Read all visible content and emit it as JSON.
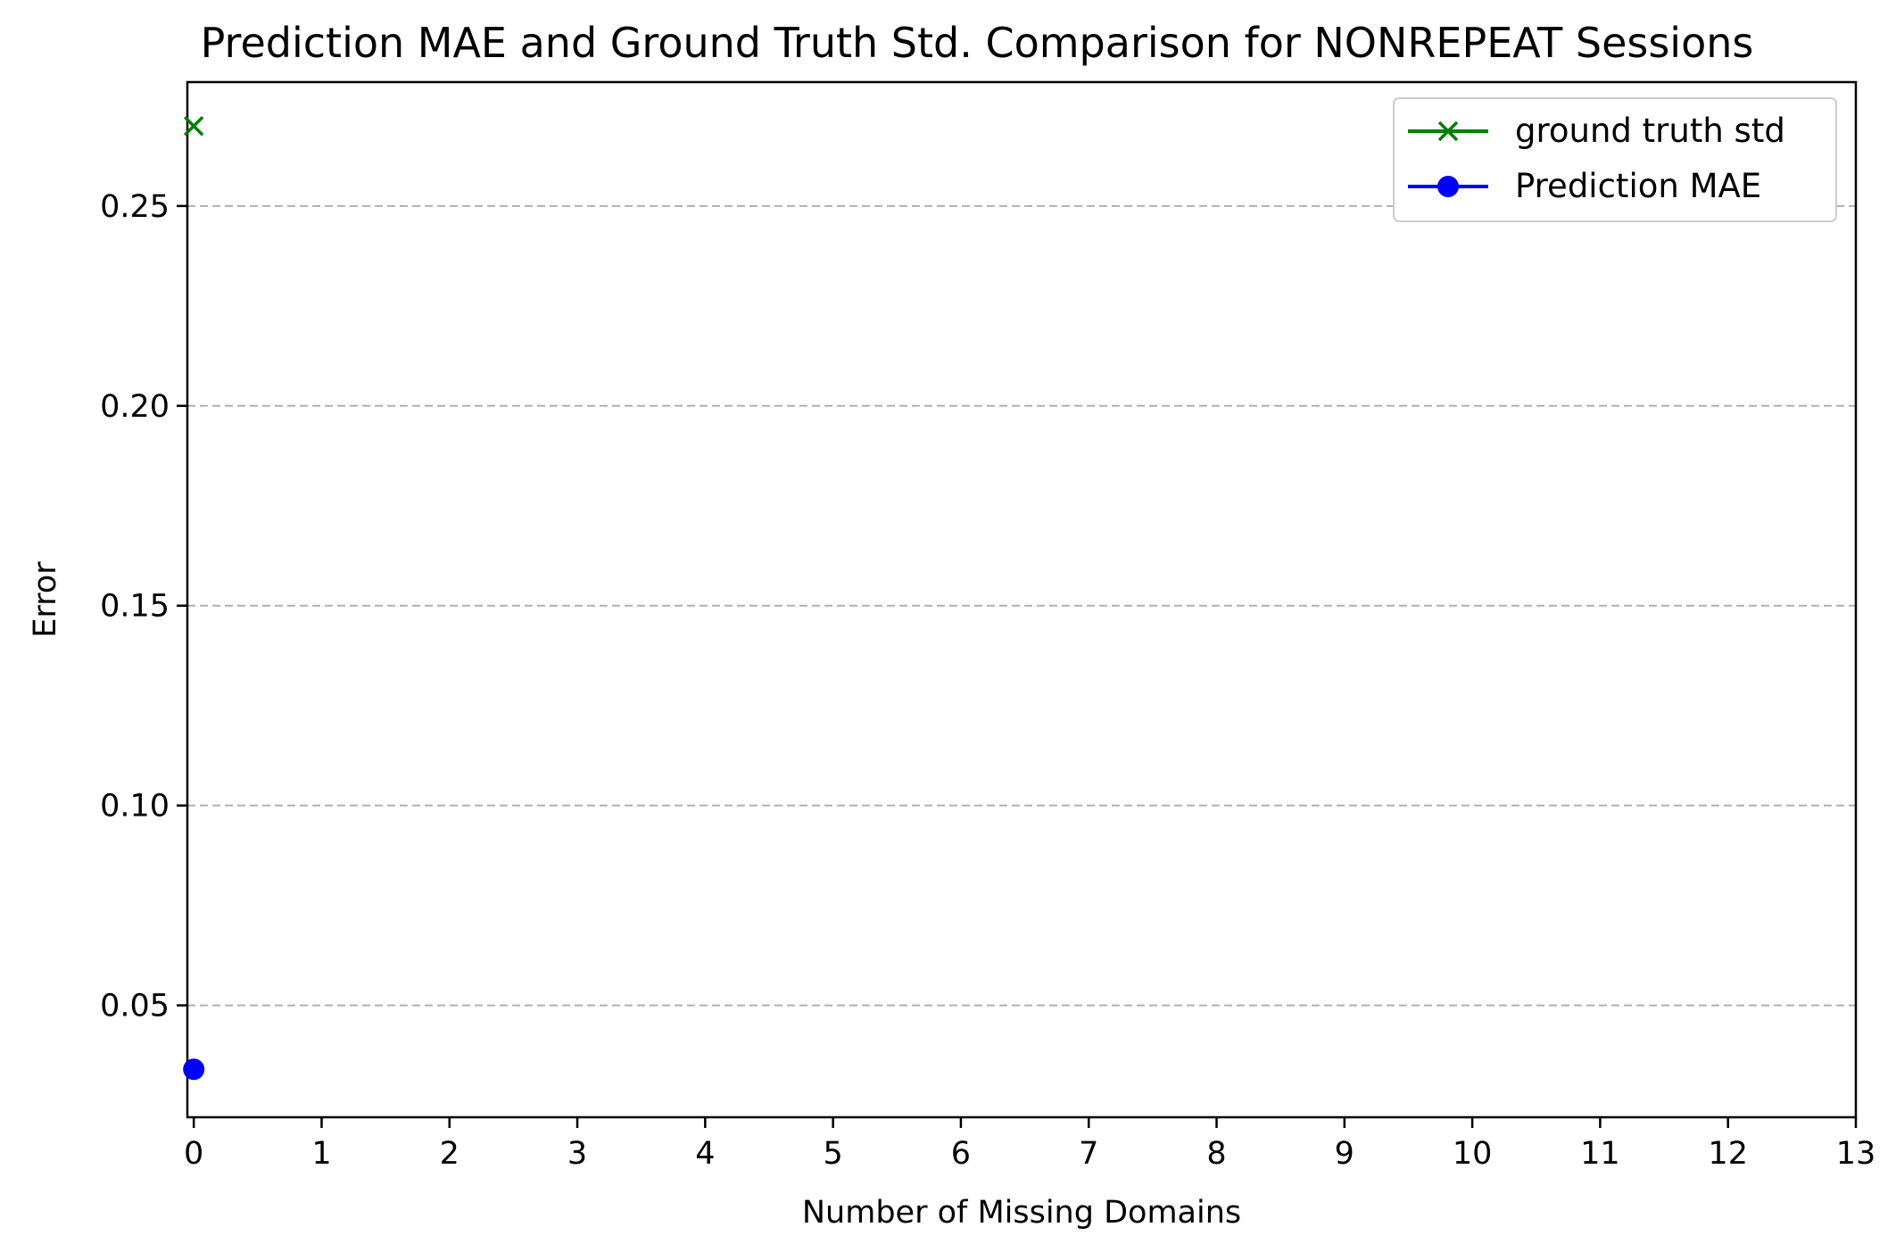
{
  "chart_data": {
    "type": "line",
    "title": "Prediction MAE and Ground Truth Std. Comparison for NONREPEAT Sessions",
    "xlabel": "Number of Missing Domains",
    "ylabel": "Error",
    "xlim": [
      -0.05,
      13
    ],
    "ylim": [
      0.022,
      0.281
    ],
    "x_ticks": [
      0,
      1,
      2,
      3,
      4,
      5,
      6,
      7,
      8,
      9,
      10,
      11,
      12,
      13
    ],
    "x_tick_labels": [
      "0",
      "1",
      "2",
      "3",
      "4",
      "5",
      "6",
      "7",
      "8",
      "9",
      "10",
      "11",
      "12",
      "13"
    ],
    "y_ticks": [
      0.05,
      0.1,
      0.15,
      0.2,
      0.25
    ],
    "y_tick_labels": [
      "0.05",
      "0.10",
      "0.15",
      "0.20",
      "0.25"
    ],
    "grid": "y-dashed",
    "legend_position": "top-right",
    "series": [
      {
        "name": "ground truth std",
        "color": "#008000",
        "marker": "x",
        "x": [
          0
        ],
        "y": [
          0.27
        ]
      },
      {
        "name": "Prediction MAE",
        "color": "#0000ff",
        "marker": "o",
        "x": [
          0
        ],
        "y": [
          0.034
        ]
      }
    ]
  }
}
